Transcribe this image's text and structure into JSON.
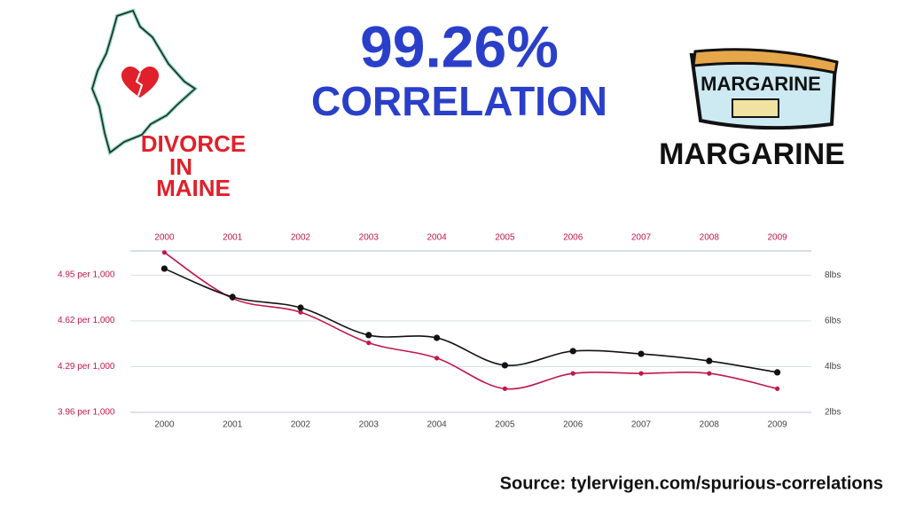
{
  "chart_data": {
    "type": "line",
    "title": "99.26%",
    "subtitle": "CORRELATION",
    "annotations": [
      "DIVORCE",
      "IN",
      "MAINE",
      "MARGARINE",
      "MARGARINE"
    ],
    "source": "Source: tylervigen.com/spurious-correlations",
    "categories": [
      "2000",
      "2001",
      "2002",
      "2003",
      "2004",
      "2005",
      "2006",
      "2007",
      "2008",
      "2009"
    ],
    "series": [
      {
        "color": "#c0174a",
        "values": [
          5.11,
          4.78,
          4.68,
          4.46,
          4.35,
          4.13,
          4.24,
          4.24,
          4.24,
          4.13
        ]
      },
      {
        "color": "#111111",
        "axis": "y2",
        "values": [
          8.29,
          7.05,
          6.58,
          5.38,
          5.26,
          4.06,
          4.68,
          4.56,
          4.25,
          3.75
        ]
      }
    ],
    "ylim": [
      3.96,
      5.14
    ],
    "yticks": [
      {
        "value": 3.96,
        "label": "3.96 per 1,000"
      },
      {
        "value": 4.29,
        "label": "4.29 per 1,000"
      },
      {
        "value": 4.62,
        "label": "4.62 per 1,000"
      },
      {
        "value": 4.95,
        "label": "4.95 per 1,000"
      }
    ],
    "y2lim": [
      2,
      9.18
    ],
    "y2ticks": [
      {
        "value": 2,
        "label": "2lbs"
      },
      {
        "value": 4,
        "label": "4lbs"
      },
      {
        "value": 6,
        "label": "6lbs"
      },
      {
        "value": 8,
        "label": "8lbs"
      }
    ],
    "grid": true
  }
}
